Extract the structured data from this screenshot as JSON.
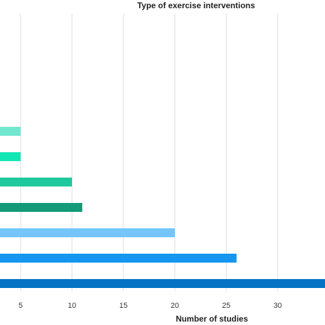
{
  "chart_data": {
    "type": "bar",
    "orientation": "horizontal",
    "title": "Type of exercise interventions",
    "xlabel": "Number of studies",
    "ylabel": "",
    "xlim": [
      3,
      34.6
    ],
    "xticks": [
      5,
      10,
      15,
      20,
      25,
      30
    ],
    "grid": true,
    "values": [
      5,
      5,
      10,
      11,
      20,
      26,
      34.6
    ],
    "colors": [
      "#6fe8cf",
      "#12e6b5",
      "#1ec99d",
      "#149a78",
      "#74c5fb",
      "#1596f0",
      "#0673c5"
    ]
  }
}
